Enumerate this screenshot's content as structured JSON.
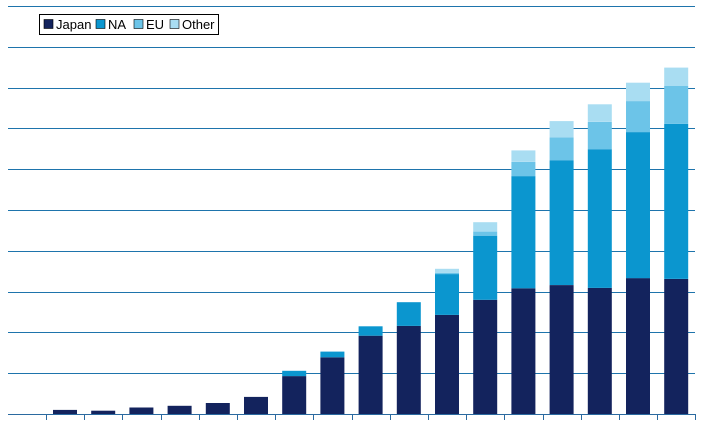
{
  "colors": {
    "Japan": "#13235d",
    "NA": "#0b96cf",
    "EU": "#6cc4e8",
    "Other": "#a9ddf2",
    "grid": "#1e74ac",
    "axis": "#2b6aa0"
  },
  "chart_data": {
    "type": "bar",
    "stacked": true,
    "title": "",
    "xlabel": "",
    "ylabel": "",
    "ylim": [
      0,
      100
    ],
    "grid": true,
    "gridlines": 10,
    "legend": {
      "placement": "top-left",
      "entries": [
        "Japan",
        "NA",
        "EU",
        "Other"
      ]
    },
    "categories": [
      "",
      "",
      "",
      "",
      "",
      "",
      "",
      "",
      "",
      "",
      "",
      "",
      "",
      "",
      "",
      "",
      ""
    ],
    "series": [
      {
        "name": "Japan",
        "values": [
          1.0,
          0.8,
          1.6,
          2.0,
          2.7,
          4.2,
          9.3,
          13.9,
          19.2,
          21.6,
          24.3,
          28.0,
          30.8,
          31.6,
          30.9,
          33.3,
          33.1
        ]
      },
      {
        "name": "NA",
        "values": [
          0.0,
          0.0,
          0.0,
          0.0,
          0.0,
          0.0,
          1.3,
          1.4,
          2.3,
          5.8,
          10.0,
          15.7,
          27.5,
          30.6,
          34.0,
          35.8,
          38.0
        ]
      },
      {
        "name": "EU",
        "values": [
          0.0,
          0.0,
          0.0,
          0.0,
          0.0,
          0.0,
          0.0,
          0.0,
          0.0,
          0.0,
          0.3,
          1.0,
          3.5,
          5.6,
          6.7,
          7.6,
          9.3
        ]
      },
      {
        "name": "Other",
        "values": [
          0.0,
          0.0,
          0.0,
          0.0,
          0.0,
          0.0,
          0.0,
          0.0,
          0.0,
          0.0,
          1.0,
          2.3,
          2.8,
          4.0,
          4.3,
          4.5,
          4.5
        ]
      }
    ]
  }
}
